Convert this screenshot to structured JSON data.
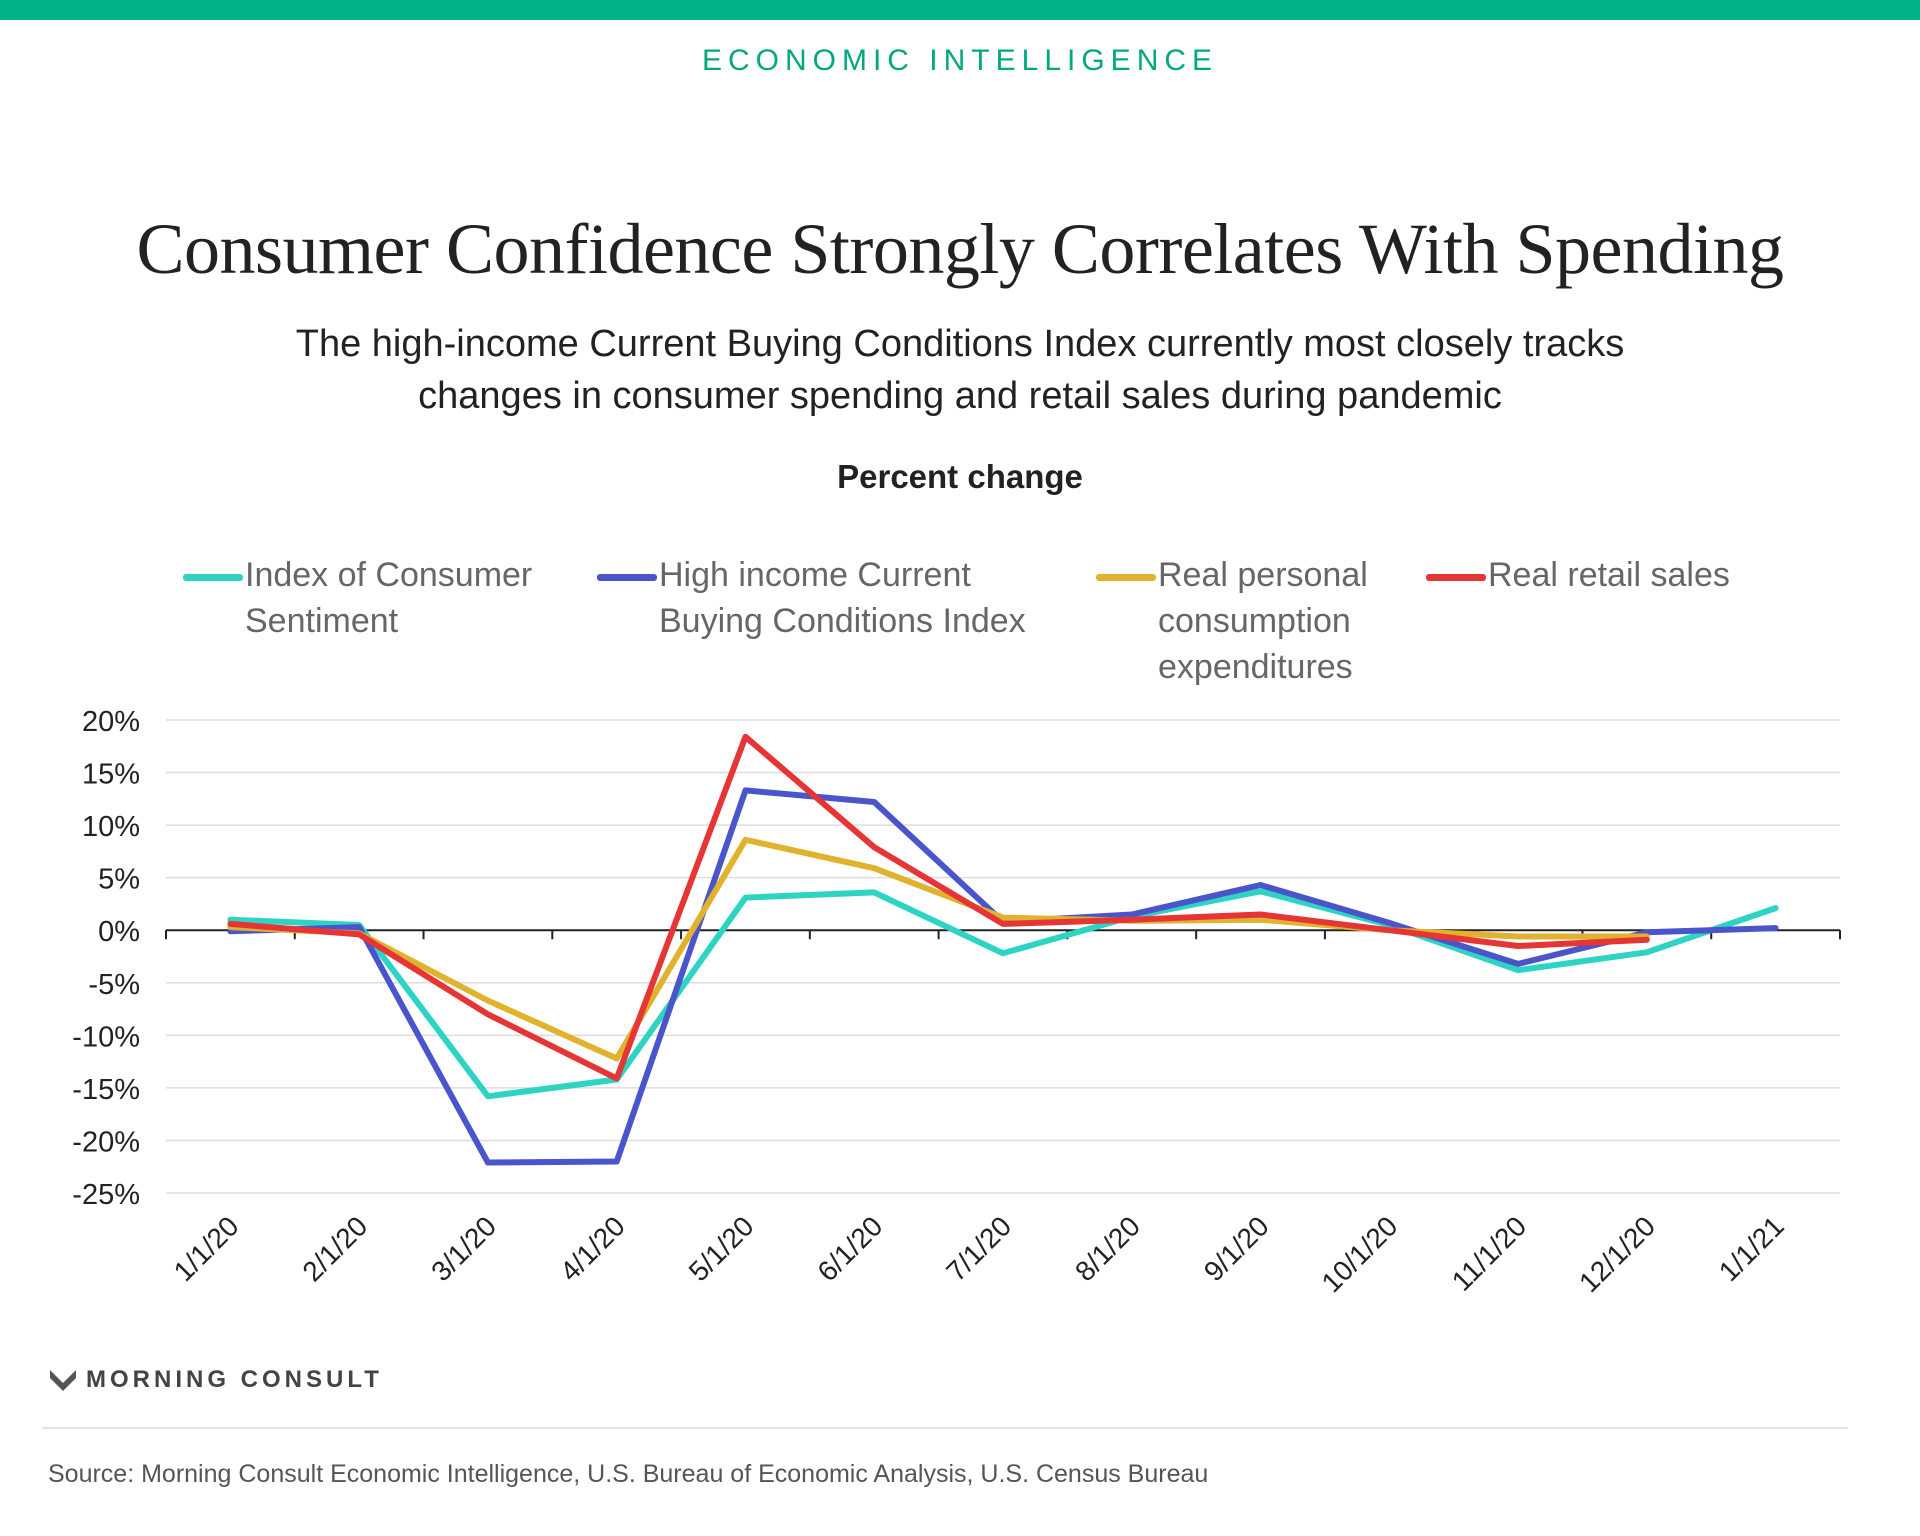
{
  "brand": "ECONOMIC INTELLIGENCE",
  "title": "Consumer Confidence Strongly Correlates With Spending",
  "subtitle": "The high-income Current Buying Conditions Index currently most closely tracks changes in consumer spending and retail sales during pandemic",
  "footer": {
    "logo_text": "MORNING CONSULT",
    "source": "Source: Morning Consult Economic Intelligence, U.S. Bureau of Economic Analysis, U.S. Census Bureau"
  },
  "colors": {
    "brand": "#00b386",
    "ics": "#2dd3c3",
    "highincome": "#4a55cc",
    "pce": "#e0b22e",
    "retail": "#e53535"
  },
  "chart_data": {
    "type": "line",
    "ylabel": "Percent change",
    "categories": [
      "1/1/20",
      "2/1/20",
      "3/1/20",
      "4/1/20",
      "5/1/20",
      "6/1/20",
      "7/1/20",
      "8/1/20",
      "9/1/20",
      "10/1/20",
      "11/1/20",
      "12/1/20",
      "1/1/21"
    ],
    "yticks": [
      20,
      15,
      10,
      5,
      0,
      -5,
      -10,
      -15,
      -20,
      -25
    ],
    "ytick_labels": [
      "20%",
      "15%",
      "10%",
      "5%",
      "0%",
      "-5%",
      "-10%",
      "-15%",
      "-20%",
      "-25%"
    ],
    "ylim": [
      -25,
      20
    ],
    "legend": "top",
    "series": [
      {
        "name": "Index of Consumer Sentiment",
        "color": "#2dd3c3",
        "values": [
          1.0,
          0.5,
          -15.8,
          -14.2,
          3.1,
          3.6,
          -2.2,
          1.3,
          3.7,
          0.5,
          -3.8,
          -2.1,
          2.1
        ]
      },
      {
        "name": "High income Current Buying Conditions Index",
        "color": "#4a55cc",
        "values": [
          -0.1,
          0.3,
          -22.1,
          -22.0,
          13.3,
          12.2,
          0.8,
          1.5,
          4.3,
          0.7,
          -3.2,
          -0.2,
          0.2
        ]
      },
      {
        "name": "Real personal consumption expenditures",
        "color": "#e0b22e",
        "values": [
          0.3,
          -0.3,
          -6.7,
          -12.2,
          8.6,
          5.9,
          1.2,
          0.9,
          1.0,
          0.0,
          -0.6,
          -0.6,
          null
        ]
      },
      {
        "name": "Real retail sales",
        "color": "#e53535",
        "values": [
          0.6,
          -0.4,
          -8.0,
          -14.1,
          18.4,
          7.9,
          0.6,
          1.0,
          1.5,
          0.0,
          -1.5,
          -0.9,
          null
        ]
      }
    ]
  }
}
